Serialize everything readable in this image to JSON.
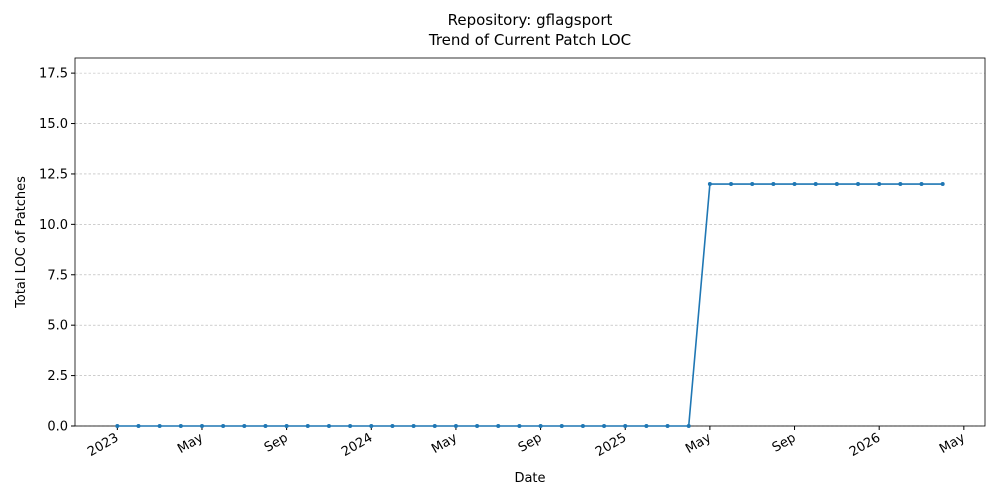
{
  "chart_data": {
    "type": "line",
    "title": "Repository: gflagsport",
    "subtitle": "Trend of Current Patch LOC",
    "x_label": "Date",
    "y_label": "Total LOC of Patches",
    "x": [
      "2023-01",
      "2023-02",
      "2023-03",
      "2023-04",
      "2023-05",
      "2023-06",
      "2023-07",
      "2023-08",
      "2023-09",
      "2023-10",
      "2023-11",
      "2023-12",
      "2024-01",
      "2024-02",
      "2024-03",
      "2024-04",
      "2024-05",
      "2024-06",
      "2024-07",
      "2024-08",
      "2024-09",
      "2024-10",
      "2024-11",
      "2024-12",
      "2025-01",
      "2025-02",
      "2025-03",
      "2025-04",
      "2025-05",
      "2025-06",
      "2025-07",
      "2025-08",
      "2025-09",
      "2025-10",
      "2025-11",
      "2025-12",
      "2026-01",
      "2026-02",
      "2026-03",
      "2026-04"
    ],
    "values": [
      0,
      0,
      0,
      0,
      0,
      0,
      0,
      0,
      0,
      0,
      0,
      0,
      0,
      0,
      0,
      0,
      0,
      0,
      0,
      0,
      0,
      0,
      0,
      0,
      0,
      0,
      0,
      0,
      12,
      12,
      12,
      12,
      12,
      12,
      12,
      12,
      12,
      12,
      12,
      12
    ],
    "color": "#1f77b4",
    "xlim": [
      "2022-11",
      "2026-06"
    ],
    "xticks": [
      {
        "value": "2023-01",
        "label": "2023"
      },
      {
        "value": "2023-05",
        "label": "May"
      },
      {
        "value": "2023-09",
        "label": "Sep"
      },
      {
        "value": "2024-01",
        "label": "2024"
      },
      {
        "value": "2024-05",
        "label": "May"
      },
      {
        "value": "2024-09",
        "label": "Sep"
      },
      {
        "value": "2025-01",
        "label": "2025"
      },
      {
        "value": "2025-05",
        "label": "May"
      },
      {
        "value": "2025-09",
        "label": "Sep"
      },
      {
        "value": "2026-01",
        "label": "2026"
      },
      {
        "value": "2026-05",
        "label": "May"
      }
    ],
    "ylim": [
      0,
      18.25
    ],
    "yticks": [
      {
        "value": 0,
        "label": "0.0"
      },
      2.5,
      {
        "value": 5,
        "label": "5.0"
      },
      7.5,
      {
        "value": 10,
        "label": "10.0"
      },
      12.5,
      {
        "value": 15,
        "label": "15.0"
      },
      17.5
    ],
    "grid": true
  }
}
